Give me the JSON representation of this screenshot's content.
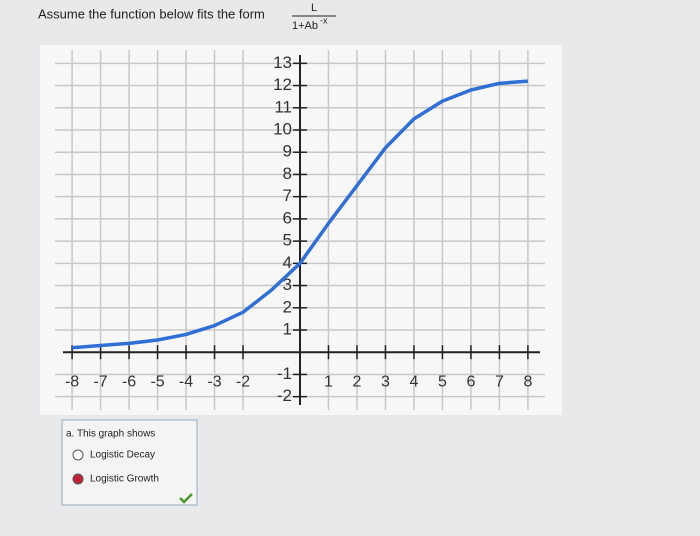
{
  "header": {
    "text": "Assume the function below fits the form",
    "numerator": "L",
    "denominator": "1+Ab",
    "exponent": "-x"
  },
  "chart_data": {
    "type": "line",
    "color": "#2f6fd6",
    "grid": true,
    "x": [
      -8,
      -7,
      -6,
      -5,
      -4,
      -3,
      -2,
      -1,
      0,
      1,
      2,
      3,
      4,
      5,
      6,
      7,
      8
    ],
    "values": [
      0.2,
      0.3,
      0.4,
      0.55,
      0.8,
      1.2,
      1.8,
      2.8,
      4.0,
      5.8,
      7.5,
      9.2,
      10.5,
      11.3,
      11.8,
      12.1,
      12.2
    ],
    "xlim": [
      -8.6,
      8.6
    ],
    "ylim": [
      -2.6,
      13.6
    ],
    "xticks": [
      -8,
      -7,
      -6,
      -5,
      -4,
      -3,
      -2,
      1,
      2,
      3,
      4,
      5,
      6,
      7,
      8
    ],
    "yticks": [
      -2,
      -1,
      1,
      2,
      3,
      4,
      5,
      6,
      7,
      8,
      9,
      10,
      11,
      12,
      13
    ]
  },
  "question": {
    "prompt": "a. This graph shows",
    "options": [
      "Logistic Decay",
      "Logistic Growth"
    ],
    "selected": 1
  }
}
